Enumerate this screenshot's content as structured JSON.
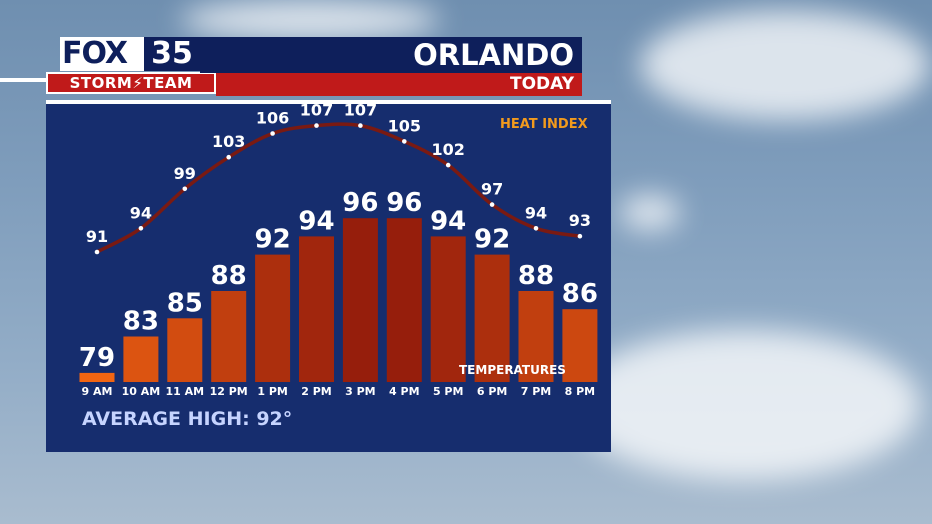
{
  "header": {
    "logo_fox": "FOX",
    "logo_number": "35",
    "logo_team": "STORM⚡TEAM",
    "city": "ORLANDO",
    "day": "TODAY"
  },
  "chart_data": {
    "type": "bar",
    "categories": [
      "9 AM",
      "10 AM",
      "11 AM",
      "12 PM",
      "1 PM",
      "2 PM",
      "3 PM",
      "4 PM",
      "5 PM",
      "6 PM",
      "7 PM",
      "8 PM"
    ],
    "series": [
      {
        "name": "TEMPERATURES",
        "type": "bar",
        "values": [
          79,
          83,
          85,
          88,
          92,
          94,
          96,
          96,
          94,
          92,
          88,
          86
        ]
      },
      {
        "name": "HEAT INDEX",
        "type": "line",
        "values": [
          91,
          94,
          99,
          103,
          106,
          107,
          107,
          105,
          102,
          97,
          94,
          93
        ]
      }
    ],
    "legend": [
      "HEAT INDEX",
      "TEMPERATURES"
    ]
  },
  "footer": {
    "avg_label": "AVERAGE HIGH:",
    "avg_value": "92°"
  },
  "colors": {
    "panel": "#162d6e",
    "navy": "#0e1f5b",
    "red": "#c01a1a",
    "heat_line": "#7a1a12",
    "heat_label": "#f29a1d",
    "avg_text": "#c6d4ff"
  }
}
